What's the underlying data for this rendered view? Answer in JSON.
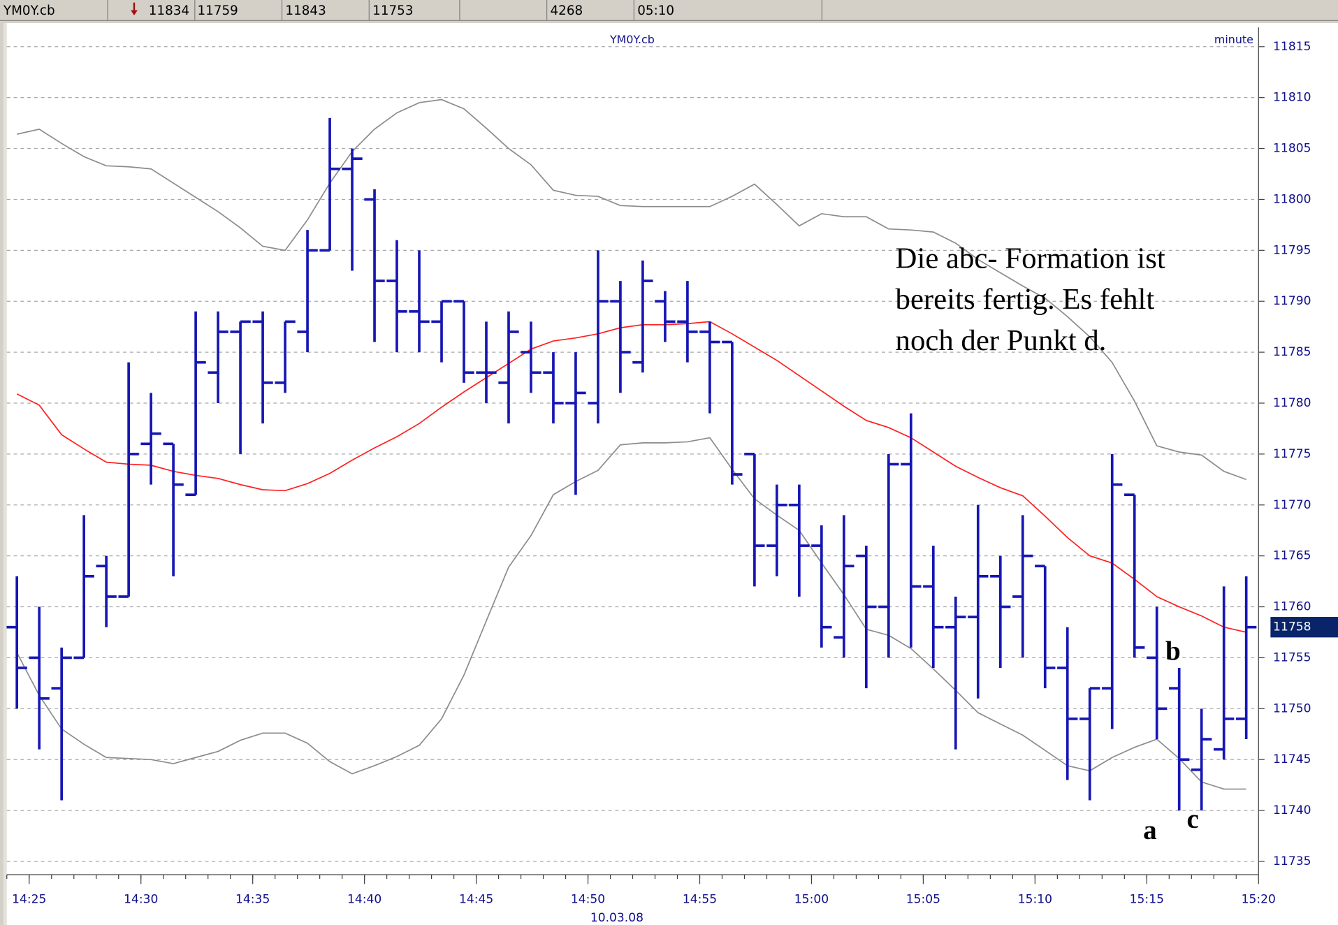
{
  "header": {
    "symbol": "YM0Y.cb",
    "values": [
      11834,
      11759,
      11843,
      11753
    ],
    "volume": 4268,
    "time": "05:10"
  },
  "chart_data": {
    "type": "ohlc",
    "title": "YM0Y.cb",
    "interval": "minute",
    "date": "10.03.08",
    "annotation": [
      "Die abc- Formation ist",
      "bereits fertig. Es fehlt",
      "noch der Punkt d."
    ],
    "point_labels": [
      "a",
      "b",
      "c"
    ],
    "color": "#1616b4",
    "x": [
      "14:24",
      "14:25",
      "14:26",
      "14:27",
      "14:28",
      "14:29",
      "14:30",
      "14:31",
      "14:32",
      "14:33",
      "14:34",
      "14:35",
      "14:36",
      "14:37",
      "14:38",
      "14:39",
      "14:40",
      "14:41",
      "14:42",
      "14:43",
      "14:44",
      "14:45",
      "14:46",
      "14:47",
      "14:48",
      "14:49",
      "14:50",
      "14:51",
      "14:52",
      "14:53",
      "14:54",
      "14:55",
      "14:56",
      "14:57",
      "14:58",
      "14:59",
      "15:00",
      "15:01",
      "15:02",
      "15:03",
      "15:04",
      "15:05",
      "15:06",
      "15:07",
      "15:08",
      "15:09",
      "15:10",
      "15:11",
      "15:12",
      "15:13",
      "15:14",
      "15:15",
      "15:16",
      "15:17",
      "15:18",
      "15:19"
    ],
    "open": [
      11758,
      11755,
      11752,
      11755,
      11764,
      11761,
      11776,
      11776,
      11771,
      11783,
      11787,
      11788,
      11782,
      11787,
      11795,
      11803,
      11800,
      11792,
      11789,
      11788,
      11790,
      11783,
      11782,
      11785,
      11783,
      11780,
      11780,
      11790,
      11784,
      11790,
      11788,
      11787,
      11786,
      11775,
      11766,
      11770,
      11766,
      11757,
      11765,
      11760,
      11774,
      11762,
      11758,
      11759,
      11763,
      11761,
      11764,
      11754,
      11749,
      11752,
      11771,
      11755,
      11752,
      11744,
      11746,
      11749
    ],
    "high": [
      11763,
      11760,
      11756,
      11769,
      11765,
      11784,
      11781,
      11776,
      11789,
      11789,
      11788,
      11789,
      11788,
      11797,
      11808,
      11805,
      11801,
      11796,
      11795,
      11790,
      11790,
      11788,
      11789,
      11788,
      11785,
      11785,
      11795,
      11792,
      11794,
      11791,
      11792,
      11788,
      11786,
      11775,
      11772,
      11772,
      11768,
      11769,
      11766,
      11775,
      11779,
      11766,
      11761,
      11770,
      11765,
      11769,
      11764,
      11758,
      11752,
      11775,
      11771,
      11760,
      11754,
      11750,
      11762,
      11763
    ],
    "low": [
      11750,
      11746,
      11741,
      11755,
      11758,
      11761,
      11772,
      11763,
      11771,
      11780,
      11775,
      11778,
      11781,
      11785,
      11795,
      11793,
      11786,
      11785,
      11785,
      11784,
      11782,
      11780,
      11778,
      11781,
      11778,
      11771,
      11778,
      11781,
      11783,
      11786,
      11784,
      11779,
      11772,
      11762,
      11763,
      11761,
      11756,
      11755,
      11752,
      11755,
      11756,
      11754,
      11746,
      11751,
      11754,
      11755,
      11752,
      11743,
      11741,
      11748,
      11755,
      11747,
      11740,
      11740,
      11745,
      11747
    ],
    "close": [
      11754,
      11751,
      11755,
      11763,
      11761,
      11775,
      11777,
      11772,
      11784,
      11787,
      11788,
      11782,
      11788,
      11795,
      11803,
      11804,
      11792,
      11789,
      11788,
      11790,
      11783,
      11783,
      11787,
      11783,
      11780,
      11781,
      11790,
      11785,
      11792,
      11788,
      11787,
      11786,
      11773,
      11766,
      11770,
      11766,
      11758,
      11764,
      11760,
      11774,
      11762,
      11758,
      11759,
      11763,
      11760,
      11765,
      11754,
      11749,
      11752,
      11772,
      11756,
      11750,
      11745,
      11747,
      11749,
      11758
    ],
    "overlays": [
      {
        "color": "#ff2020",
        "values": [
          11780.9,
          11779.8,
          11776.9,
          11775.5,
          11774.2,
          11774,
          11773.9,
          11773.3,
          11772.9,
          11772.6,
          11772,
          11771.5,
          11771.4,
          11772.1,
          11773.1,
          11774.4,
          11775.6,
          11776.7,
          11778,
          11779.6,
          11781.1,
          11782.5,
          11783.9,
          11785.3,
          11786.1,
          11786.4,
          11786.8,
          11787.4,
          11787.7,
          11787.7,
          11787.8,
          11788,
          11786.8,
          11785.5,
          11784.2,
          11782.7,
          11781.2,
          11779.7,
          11778.3,
          11777.6,
          11776.6,
          11775.2,
          11773.8,
          11772.7,
          11771.7,
          11770.9,
          11768.9,
          11766.8,
          11765,
          11764.3,
          11762.7,
          11761,
          11760,
          11759.1,
          11758,
          11757.5
        ]
      },
      {
        "color": "#8c8c8c",
        "values": [
          11806.4,
          11806.9,
          11805.5,
          11804.2,
          11803.3,
          11803.2,
          11803,
          11801.6,
          11800.2,
          11798.8,
          11797.2,
          11795.4,
          11795,
          11798,
          11801.6,
          11804.7,
          11806.9,
          11808.5,
          11809.5,
          11809.8,
          11808.9,
          11807,
          11805,
          11803.4,
          11800.9,
          11800.4,
          11800.3,
          11799.4,
          11799.3,
          11799.3,
          11799.3,
          11799.3,
          11800.3,
          11801.5,
          11799.5,
          11797.4,
          11798.6,
          11798.3,
          11798.3,
          11797.1,
          11797,
          11796.8,
          11795.7,
          11794.1,
          11792.8,
          11791.5,
          11790.3,
          11788.5,
          11786.5,
          11784,
          11780.2,
          11775.8,
          11775.2,
          11774.9,
          11773.3,
          11772.5
        ]
      },
      {
        "color": "#8c8c8c",
        "values": [
          11755.5,
          11751.3,
          11748,
          11746.5,
          11745.2,
          11745.1,
          11745,
          11744.6,
          11745.2,
          11745.8,
          11746.9,
          11747.6,
          11747.6,
          11746.6,
          11744.8,
          11743.6,
          11744.4,
          11745.3,
          11746.4,
          11749,
          11753.3,
          11758.6,
          11763.9,
          11767,
          11771,
          11772.3,
          11773.4,
          11775.9,
          11776.1,
          11776.1,
          11776.2,
          11776.6,
          11773.5,
          11770.6,
          11769,
          11767.5,
          11764.3,
          11761.2,
          11757.8,
          11757.2,
          11755.9,
          11753.9,
          11751.8,
          11749.6,
          11748.5,
          11747.4,
          11745.9,
          11744.4,
          11743.9,
          11745.2,
          11746.2,
          11747,
          11745.1,
          11742.8,
          11742.1,
          11742.1
        ]
      }
    ],
    "last_price": 11758,
    "last_price_color": "#0a246a",
    "xlim": [
      "14:24",
      "15:20"
    ],
    "xticks": [
      "14:25",
      "14:30",
      "14:35",
      "14:40",
      "14:45",
      "14:50",
      "14:55",
      "15:00",
      "15:05",
      "15:10",
      "15:15",
      "15:20"
    ],
    "ylim": [
      11733.7,
      11816.9
    ],
    "yticks": [
      11735,
      11740,
      11745,
      11750,
      11755,
      11760,
      11765,
      11770,
      11775,
      11780,
      11785,
      11790,
      11795,
      11800,
      11805,
      11810,
      11815
    ],
    "grid": true
  }
}
